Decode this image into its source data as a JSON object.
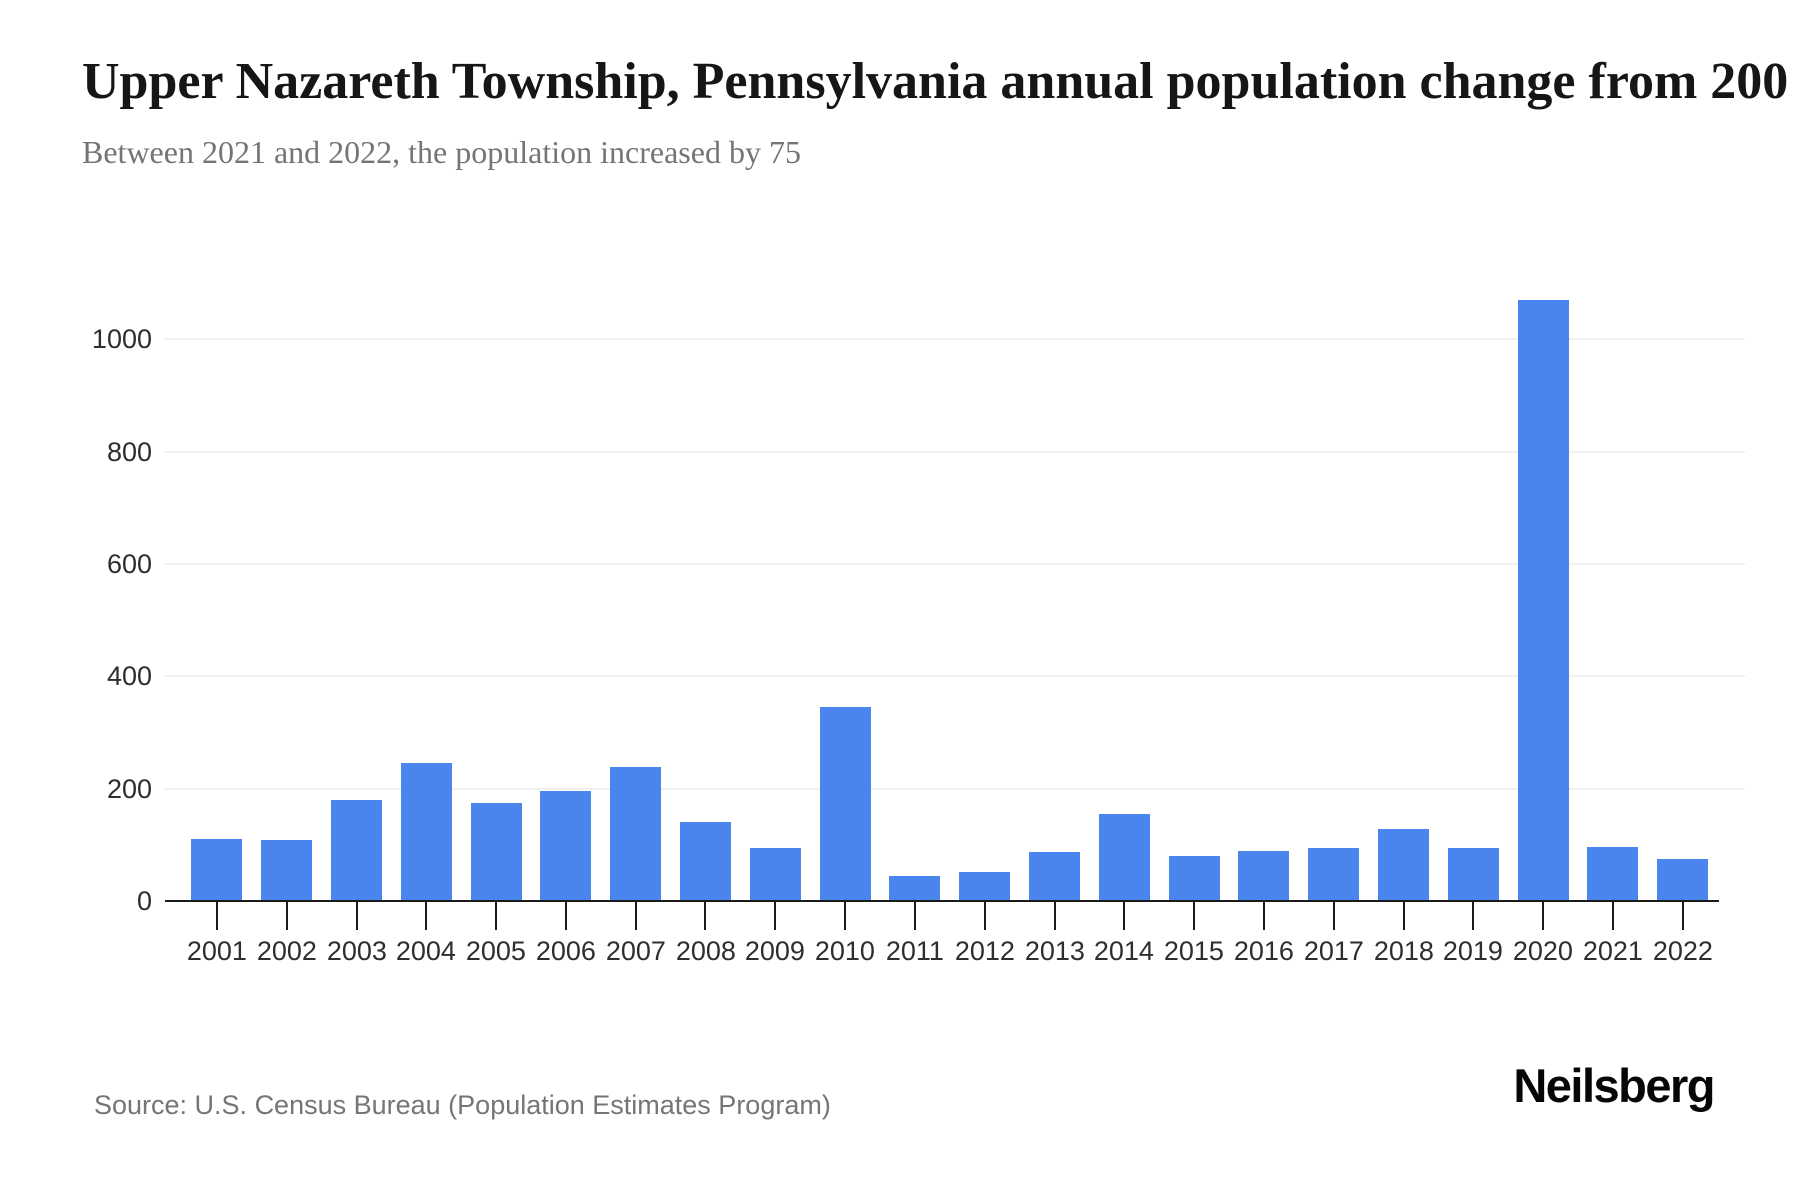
{
  "chart_data": {
    "type": "bar",
    "title": "Upper Nazareth Township, Pennsylvania annual population change from 200",
    "subtitle": "Between 2021 and 2022, the population increased by 75",
    "categories": [
      "2001",
      "2002",
      "2003",
      "2004",
      "2005",
      "2006",
      "2007",
      "2008",
      "2009",
      "2010",
      "2011",
      "2012",
      "2013",
      "2014",
      "2015",
      "2016",
      "2017",
      "2018",
      "2019",
      "2020",
      "2021",
      "2022"
    ],
    "values": [
      111,
      108,
      180,
      245,
      174,
      195,
      239,
      140,
      95,
      346,
      44,
      52,
      87,
      155,
      80,
      89,
      95,
      128,
      94,
      1070,
      97,
      75
    ],
    "xlabel": "",
    "ylabel": "",
    "ylim": [
      0,
      1100
    ],
    "yticks": [
      0,
      200,
      400,
      600,
      800,
      1000
    ],
    "grid": true,
    "legend": false,
    "bar_color": "#4a85ee",
    "gridline_color": "#f0f0f0",
    "axis_color": "#1a1a1a"
  },
  "footer": {
    "source": "Source: U.S. Census Bureau (Population Estimates Program)",
    "brand": "Neilsberg"
  }
}
